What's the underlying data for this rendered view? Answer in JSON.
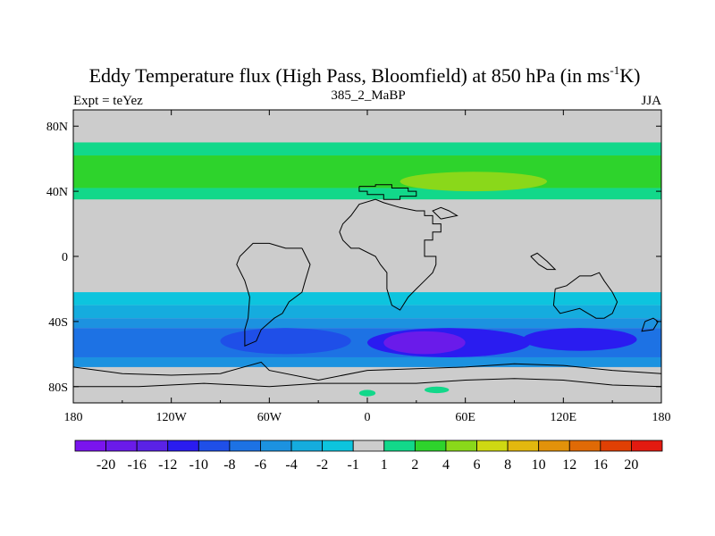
{
  "chart_data": {
    "type": "heatmap",
    "title": "Eddy Temperature flux (High Pass, Bloomfield) at 850 hPa (in ms",
    "title_sup": "-1",
    "title_end": "K)",
    "subtitle_left": "Expt = teYez",
    "subtitle_center": "385_2_MaBP",
    "subtitle_right": "JJA",
    "xlim": [
      -180,
      180
    ],
    "ylim": [
      -90,
      90
    ],
    "x_ticks": [
      {
        "value": -180,
        "label": "180"
      },
      {
        "value": -120,
        "label": "120W"
      },
      {
        "value": -60,
        "label": "60W"
      },
      {
        "value": 0,
        "label": "0"
      },
      {
        "value": 60,
        "label": "60E"
      },
      {
        "value": 120,
        "label": "120E"
      },
      {
        "value": 180,
        "label": "180"
      }
    ],
    "y_ticks": [
      {
        "value": 80,
        "label": "80N"
      },
      {
        "value": 40,
        "label": "40N"
      },
      {
        "value": 0,
        "label": "0"
      },
      {
        "value": -40,
        "label": "40S"
      },
      {
        "value": -80,
        "label": "80S"
      }
    ],
    "colorbar": {
      "labels": [
        "-20",
        "-16",
        "-12",
        "-10",
        "-8",
        "-6",
        "-4",
        "-2",
        "-1",
        "1",
        "2",
        "4",
        "6",
        "8",
        "10",
        "12",
        "16",
        "20"
      ],
      "colors": [
        "#7a14ee",
        "#6a1bea",
        "#5a22e6",
        "#2a1cf0",
        "#1f4fe8",
        "#1d72e4",
        "#1c92e0",
        "#15acde",
        "#0dc4de",
        "#cccccc",
        "#12d88a",
        "#2ed32c",
        "#8ad81a",
        "#cfd812",
        "#e2b80e",
        "#e2920a",
        "#e06a06",
        "#e04004",
        "#e21a10"
      ]
    },
    "bands": [
      {
        "lat_top": 70,
        "lat_bottom": 62,
        "value": 1.5,
        "color_index": 10
      },
      {
        "lat_top": 62,
        "lat_bottom": 42,
        "value": 2.5,
        "color_index": 11
      },
      {
        "lat_top": 42,
        "lat_bottom": 35,
        "value": 1.5,
        "color_index": 10
      },
      {
        "lat_top": -22,
        "lat_bottom": -30,
        "value": -1.5,
        "color_index": 8
      },
      {
        "lat_top": -30,
        "lat_bottom": -38,
        "value": -2.5,
        "color_index": 7
      },
      {
        "lat_top": -38,
        "lat_bottom": -44,
        "value": -4.5,
        "color_index": 6
      },
      {
        "lat_top": -44,
        "lat_bottom": -62,
        "value": -7,
        "color_index": 5
      },
      {
        "lat_top": -62,
        "lat_bottom": -68,
        "value": -3,
        "color_index": 6
      }
    ],
    "features": [
      {
        "lon_min": 20,
        "lon_max": 110,
        "lat_min": 40,
        "lat_max": 52,
        "value": 5,
        "color_index": 12,
        "shape": "ellipse"
      },
      {
        "lon_min": 0,
        "lon_max": 100,
        "lat_min": -62,
        "lat_max": -44,
        "value": -12,
        "color_index": 3,
        "shape": "ellipse"
      },
      {
        "lon_min": 10,
        "lon_max": 60,
        "lat_min": -60,
        "lat_max": -46,
        "value": -16,
        "color_index": 1,
        "shape": "ellipse"
      },
      {
        "lon_min": 95,
        "lon_max": 165,
        "lat_min": -58,
        "lat_max": -44,
        "value": -10,
        "color_index": 3,
        "shape": "ellipse"
      },
      {
        "lon_min": -90,
        "lon_max": -10,
        "lat_min": -60,
        "lat_max": -44,
        "value": -9,
        "color_index": 4,
        "shape": "ellipse"
      },
      {
        "lon_min": -5,
        "lon_max": 5,
        "lat_min": -86,
        "lat_max": -82,
        "value": 1.5,
        "color_index": 10,
        "shape": "ellipse"
      },
      {
        "lon_min": 35,
        "lon_max": 50,
        "lat_min": -84,
        "lat_max": -80,
        "value": 1.5,
        "color_index": 10,
        "shape": "ellipse"
      }
    ],
    "coastlines": [
      [
        [
          -5,
          43
        ],
        [
          5,
          43
        ],
        [
          5,
          44
        ],
        [
          15,
          44
        ],
        [
          15,
          42
        ],
        [
          25,
          42
        ],
        [
          25,
          40
        ],
        [
          30,
          40
        ],
        [
          30,
          37
        ],
        [
          20,
          37
        ],
        [
          20,
          35
        ],
        [
          10,
          35
        ],
        [
          10,
          38
        ],
        [
          0,
          38
        ],
        [
          0,
          40
        ],
        [
          -5,
          40
        ],
        [
          -5,
          43
        ]
      ],
      [
        [
          30,
          28
        ],
        [
          35,
          28
        ],
        [
          35,
          25
        ],
        [
          40,
          25
        ],
        [
          40,
          20
        ],
        [
          45,
          20
        ],
        [
          45,
          15
        ],
        [
          40,
          15
        ],
        [
          40,
          10
        ],
        [
          35,
          10
        ],
        [
          35,
          0
        ],
        [
          42,
          0
        ],
        [
          42,
          -5
        ],
        [
          40,
          -10
        ],
        [
          35,
          -15
        ],
        [
          30,
          -20
        ],
        [
          25,
          -25
        ],
        [
          20,
          -33
        ],
        [
          15,
          -30
        ],
        [
          12,
          -20
        ],
        [
          12,
          -10
        ],
        [
          8,
          -5
        ],
        [
          5,
          0
        ],
        [
          -5,
          5
        ],
        [
          -10,
          5
        ],
        [
          -15,
          10
        ],
        [
          -17,
          15
        ],
        [
          -15,
          20
        ],
        [
          -10,
          25
        ],
        [
          -5,
          32
        ],
        [
          5,
          35
        ],
        [
          10,
          33
        ],
        [
          20,
          30
        ],
        [
          30,
          28
        ]
      ],
      [
        [
          -40,
          5
        ],
        [
          -35,
          -5
        ],
        [
          -38,
          -15
        ],
        [
          -40,
          -22
        ],
        [
          -48,
          -28
        ],
        [
          -52,
          -35
        ],
        [
          -57,
          -38
        ],
        [
          -65,
          -45
        ],
        [
          -68,
          -52
        ],
        [
          -75,
          -55
        ],
        [
          -75,
          -45
        ],
        [
          -73,
          -38
        ],
        [
          -72,
          -25
        ],
        [
          -75,
          -15
        ],
        [
          -80,
          -5
        ],
        [
          -78,
          0
        ],
        [
          -70,
          8
        ],
        [
          -60,
          8
        ],
        [
          -50,
          5
        ],
        [
          -40,
          5
        ]
      ],
      [
        [
          115,
          -20
        ],
        [
          122,
          -18
        ],
        [
          130,
          -12
        ],
        [
          137,
          -12
        ],
        [
          142,
          -10
        ],
        [
          145,
          -15
        ],
        [
          150,
          -22
        ],
        [
          153,
          -28
        ],
        [
          150,
          -35
        ],
        [
          145,
          -38
        ],
        [
          140,
          -38
        ],
        [
          135,
          -35
        ],
        [
          130,
          -32
        ],
        [
          118,
          -35
        ],
        [
          114,
          -30
        ],
        [
          115,
          -20
        ]
      ],
      [
        [
          100,
          0
        ],
        [
          105,
          -5
        ],
        [
          110,
          -8
        ],
        [
          115,
          -8
        ],
        [
          110,
          -3
        ],
        [
          104,
          2
        ],
        [
          100,
          0
        ]
      ],
      [
        [
          170,
          -40
        ],
        [
          175,
          -38
        ],
        [
          178,
          -40
        ],
        [
          175,
          -45
        ],
        [
          168,
          -46
        ],
        [
          170,
          -40
        ]
      ],
      [
        [
          -180,
          -68
        ],
        [
          -150,
          -72
        ],
        [
          -120,
          -73
        ],
        [
          -90,
          -72
        ],
        [
          -65,
          -65
        ],
        [
          -60,
          -70
        ],
        [
          -30,
          -76
        ],
        [
          0,
          -70
        ],
        [
          30,
          -69
        ],
        [
          60,
          -68
        ],
        [
          90,
          -66
        ],
        [
          120,
          -67
        ],
        [
          150,
          -70
        ],
        [
          180,
          -72
        ]
      ],
      [
        [
          -180,
          -80
        ],
        [
          -140,
          -80
        ],
        [
          -100,
          -78
        ],
        [
          -60,
          -80
        ],
        [
          -30,
          -78
        ],
        [
          0,
          -78
        ],
        [
          30,
          -78
        ],
        [
          60,
          -76
        ],
        [
          90,
          -75
        ],
        [
          120,
          -76
        ],
        [
          150,
          -79
        ],
        [
          180,
          -80
        ]
      ],
      [
        [
          45,
          23
        ],
        [
          55,
          25
        ],
        [
          50,
          28
        ],
        [
          45,
          30
        ],
        [
          40,
          28
        ],
        [
          45,
          23
        ]
      ]
    ]
  }
}
